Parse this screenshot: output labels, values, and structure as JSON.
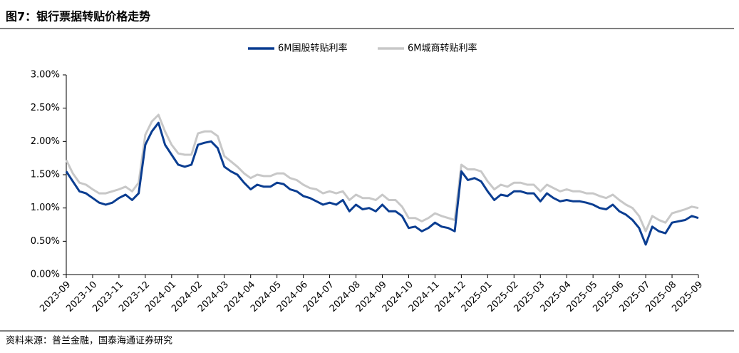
{
  "title": "图7：银行票据转贴价格走势",
  "source": "资料来源：普兰金融，国泰海通证券研究",
  "chart_data": {
    "type": "line",
    "categories": [
      "2023-09",
      null,
      null,
      null,
      "2023-10",
      null,
      null,
      null,
      "2023-11",
      null,
      null,
      null,
      "2023-12",
      null,
      null,
      null,
      "2024-01",
      null,
      null,
      null,
      "2024-02",
      null,
      null,
      null,
      "2024-03",
      null,
      null,
      null,
      "2024-04",
      null,
      null,
      null,
      "2024-05",
      null,
      null,
      null,
      "2024-06",
      null,
      null,
      null,
      "2024-07",
      null,
      null,
      null,
      "2024-08",
      null,
      null,
      null,
      "2024-09",
      null,
      null,
      null,
      "2024-10",
      null,
      null,
      null,
      "2024-11",
      null,
      null,
      null,
      "2024-12",
      null,
      null,
      null,
      "2025-01",
      null,
      null,
      null,
      "2025-02",
      null,
      null,
      null,
      "2025-03",
      null,
      null,
      null,
      "2025-04",
      null,
      null,
      null,
      "2025-05",
      null,
      null,
      null,
      "2025-06",
      null,
      null,
      null,
      "2025-07",
      null,
      null,
      null,
      "2025-08",
      null,
      null,
      null,
      "2025-09"
    ],
    "series": [
      {
        "name": "6M国股转贴利率",
        "color": "#0a3d91",
        "values": [
          1.55,
          1.4,
          1.25,
          1.22,
          1.15,
          1.08,
          1.05,
          1.08,
          1.15,
          1.2,
          1.12,
          1.22,
          1.95,
          2.15,
          2.28,
          1.95,
          1.8,
          1.65,
          1.62,
          1.65,
          1.95,
          1.98,
          2.0,
          1.9,
          1.62,
          1.55,
          1.5,
          1.38,
          1.28,
          1.35,
          1.32,
          1.32,
          1.38,
          1.36,
          1.28,
          1.25,
          1.18,
          1.15,
          1.1,
          1.05,
          1.08,
          1.05,
          1.12,
          0.95,
          1.05,
          0.98,
          1.0,
          0.95,
          1.05,
          0.95,
          0.95,
          0.88,
          0.7,
          0.72,
          0.65,
          0.7,
          0.78,
          0.72,
          0.7,
          0.65,
          1.55,
          1.42,
          1.45,
          1.4,
          1.25,
          1.12,
          1.2,
          1.18,
          1.25,
          1.25,
          1.22,
          1.22,
          1.1,
          1.22,
          1.15,
          1.1,
          1.12,
          1.1,
          1.1,
          1.08,
          1.05,
          1.0,
          0.98,
          1.05,
          0.95,
          0.9,
          0.82,
          0.7,
          0.45,
          0.72,
          0.65,
          0.62,
          0.78,
          0.8,
          0.82,
          0.88,
          0.85
        ]
      },
      {
        "name": "6M城商转贴利率",
        "color": "#c8c8c8",
        "values": [
          1.72,
          1.52,
          1.38,
          1.35,
          1.28,
          1.22,
          1.22,
          1.25,
          1.28,
          1.32,
          1.25,
          1.38,
          2.1,
          2.3,
          2.4,
          2.15,
          1.95,
          1.82,
          1.8,
          1.8,
          2.12,
          2.15,
          2.15,
          2.08,
          1.78,
          1.7,
          1.62,
          1.52,
          1.45,
          1.5,
          1.48,
          1.48,
          1.52,
          1.52,
          1.45,
          1.42,
          1.35,
          1.3,
          1.28,
          1.22,
          1.25,
          1.22,
          1.25,
          1.12,
          1.2,
          1.15,
          1.15,
          1.12,
          1.2,
          1.12,
          1.12,
          1.02,
          0.85,
          0.85,
          0.8,
          0.85,
          0.92,
          0.88,
          0.85,
          0.82,
          1.65,
          1.58,
          1.58,
          1.55,
          1.4,
          1.28,
          1.35,
          1.32,
          1.38,
          1.38,
          1.35,
          1.35,
          1.25,
          1.35,
          1.3,
          1.25,
          1.28,
          1.25,
          1.25,
          1.22,
          1.22,
          1.18,
          1.15,
          1.2,
          1.12,
          1.05,
          1.0,
          0.88,
          0.65,
          0.88,
          0.82,
          0.78,
          0.92,
          0.95,
          0.98,
          1.02,
          1.0
        ]
      }
    ],
    "ylim": [
      0,
      3
    ],
    "yticks": [
      {
        "value": 0,
        "label": "0.00%"
      },
      {
        "value": 0.5,
        "label": "0.50%"
      },
      {
        "value": 1,
        "label": "1.00%"
      },
      {
        "value": 1.5,
        "label": "1.50%"
      },
      {
        "value": 2,
        "label": "2.00%"
      },
      {
        "value": 2.5,
        "label": "2.50%"
      },
      {
        "value": 3,
        "label": "3.00%"
      }
    ],
    "legend": "top"
  }
}
